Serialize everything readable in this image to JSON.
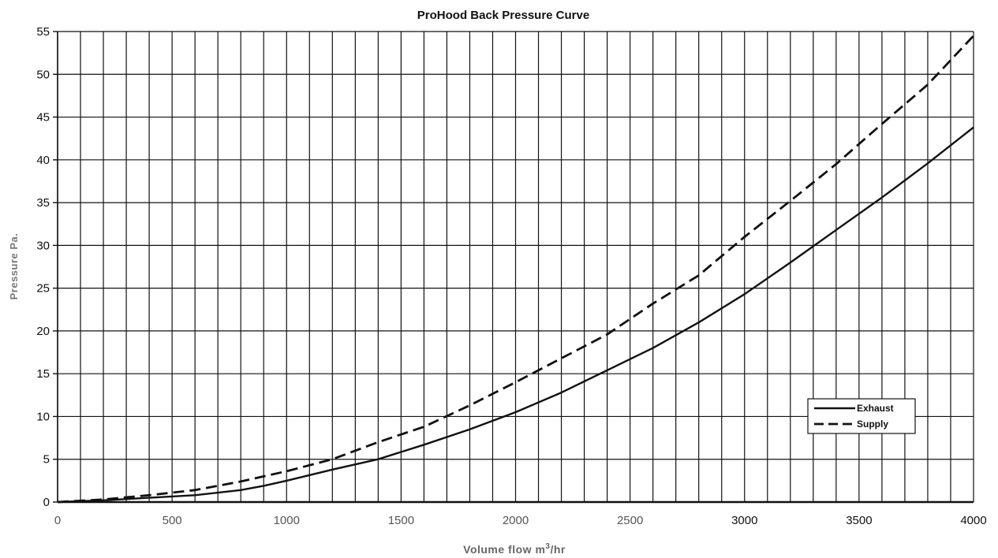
{
  "chart_data": {
    "type": "line",
    "title": "ProHood Back Pressure Curve",
    "xlabel": "Volume flow m",
    "xlabel_sup": "3",
    "xlabel_suffix": "/hr",
    "ylabel": "Pressure Pa.",
    "xlim": [
      0,
      4000
    ],
    "ylim": [
      0,
      55
    ],
    "x_ticks": [
      0,
      500,
      1000,
      1500,
      2000,
      2500,
      3000,
      3500,
      4000
    ],
    "y_ticks": [
      0,
      5,
      10,
      15,
      20,
      25,
      30,
      35,
      40,
      45,
      50,
      55
    ],
    "x_minor_step": 100,
    "grid": true,
    "legend_position": "right",
    "series": [
      {
        "name": "Exhaust",
        "style": "solid",
        "color": "#111111",
        "x": [
          0,
          200,
          400,
          600,
          800,
          900,
          1000,
          1200,
          1400,
          1600,
          1800,
          2000,
          2200,
          2400,
          2600,
          2800,
          3000,
          3200,
          3400,
          3600,
          3800,
          4000
        ],
        "y": [
          0,
          0.2,
          0.5,
          0.8,
          1.4,
          1.9,
          2.5,
          3.8,
          5.0,
          6.7,
          8.5,
          10.5,
          12.8,
          15.4,
          18.0,
          21.0,
          24.3,
          28.0,
          31.8,
          35.6,
          39.6,
          43.8
        ]
      },
      {
        "name": "Supply",
        "style": "dashed",
        "color": "#111111",
        "x": [
          0,
          200,
          400,
          600,
          800,
          1000,
          1200,
          1400,
          1600,
          1800,
          2000,
          2200,
          2400,
          2600,
          2800,
          3000,
          3200,
          3400,
          3600,
          3800,
          4000
        ],
        "y": [
          0,
          0.3,
          0.8,
          1.4,
          2.4,
          3.6,
          5.0,
          7.0,
          8.8,
          11.3,
          14.0,
          16.8,
          19.6,
          23.2,
          26.5,
          31.0,
          35.2,
          39.5,
          44.2,
          48.8,
          54.5
        ]
      }
    ]
  }
}
